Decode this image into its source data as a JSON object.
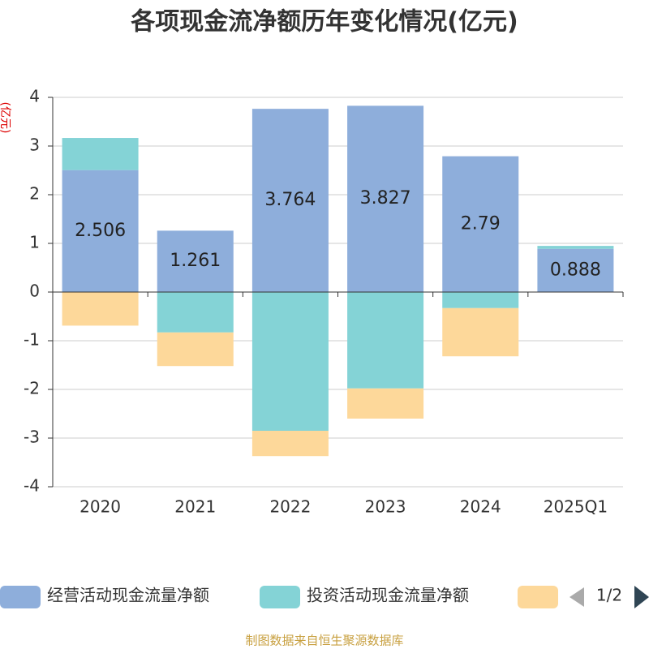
{
  "chart_data": {
    "type": "stacked_bar",
    "title": "各项现金流净额历年变化情况(亿元)",
    "ylabel": "(亿元)",
    "categories": [
      "2020",
      "2021",
      "2022",
      "2023",
      "2024",
      "2025Q1"
    ],
    "series": [
      {
        "name": "经营活动现金流量净额",
        "color": "#8eaedb",
        "values": [
          2.506,
          1.261,
          3.764,
          3.827,
          2.79,
          0.888
        ],
        "labels": true
      },
      {
        "name": "投资活动现金流量净额",
        "color": "#84d3d6",
        "values": [
          0.66,
          -0.83,
          -2.85,
          -1.98,
          -0.33,
          0.06
        ]
      },
      {
        "color": "#fdd89a",
        "values": [
          -0.69,
          -0.69,
          -0.52,
          -0.62,
          -0.99,
          0
        ]
      }
    ],
    "ylim": [
      -4,
      4
    ],
    "yticks": [
      -4,
      -3,
      -2,
      -1,
      0,
      1,
      2,
      3,
      4
    ],
    "grid": true,
    "legend_page": "1/2",
    "source": "制图数据来自恒生聚源数据库"
  }
}
